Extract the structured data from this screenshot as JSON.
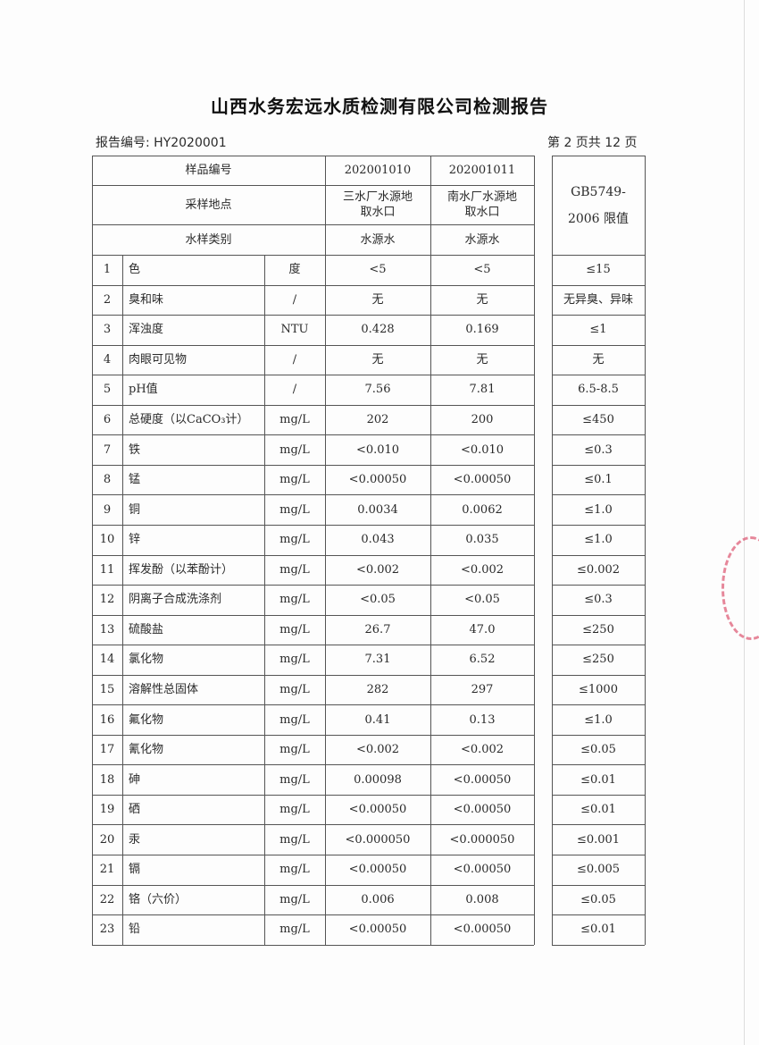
{
  "title": "山西水务宏远水质检测有限公司检测报告",
  "report_no": "报告编号: HY2020001",
  "page_info": "第 2 页共 12 页",
  "header": {
    "sample_no_label": "样品编号",
    "sample_nos": [
      "202001010",
      "202001011"
    ],
    "site_label": "采样地点",
    "sites": [
      "三水厂水源地取水口",
      "南水厂水源地取水口"
    ],
    "type_label": "水样类别",
    "types": [
      "水源水",
      "水源水"
    ],
    "standard": "GB5749-2006 限值"
  },
  "rows": [
    {
      "no": "1",
      "item": "色",
      "unit": "度",
      "a": "<5",
      "b": "<5",
      "limit": "≤15"
    },
    {
      "no": "2",
      "item": "臭和味",
      "unit": "/",
      "a": "无",
      "b": "无",
      "limit": "无异臭、异味"
    },
    {
      "no": "3",
      "item": "浑浊度",
      "unit": "NTU",
      "a": "0.428",
      "b": "0.169",
      "limit": "≤1"
    },
    {
      "no": "4",
      "item": "肉眼可见物",
      "unit": "/",
      "a": "无",
      "b": "无",
      "limit": "无"
    },
    {
      "no": "5",
      "item": "pH值",
      "unit": "/",
      "a": "7.56",
      "b": "7.81",
      "limit": "6.5-8.5"
    },
    {
      "no": "6",
      "item": "总硬度（以CaCO₃计）",
      "unit": "mg/L",
      "a": "202",
      "b": "200",
      "limit": "≤450"
    },
    {
      "no": "7",
      "item": "铁",
      "unit": "mg/L",
      "a": "<0.010",
      "b": "<0.010",
      "limit": "≤0.3"
    },
    {
      "no": "8",
      "item": "锰",
      "unit": "mg/L",
      "a": "<0.00050",
      "b": "<0.00050",
      "limit": "≤0.1"
    },
    {
      "no": "9",
      "item": "铜",
      "unit": "mg/L",
      "a": "0.0034",
      "b": "0.0062",
      "limit": "≤1.0"
    },
    {
      "no": "10",
      "item": "锌",
      "unit": "mg/L",
      "a": "0.043",
      "b": "0.035",
      "limit": "≤1.0"
    },
    {
      "no": "11",
      "item": "挥发酚（以苯酚计）",
      "unit": "mg/L",
      "a": "<0.002",
      "b": "<0.002",
      "limit": "≤0.002"
    },
    {
      "no": "12",
      "item": "阴离子合成洗涤剂",
      "unit": "mg/L",
      "a": "<0.05",
      "b": "<0.05",
      "limit": "≤0.3"
    },
    {
      "no": "13",
      "item": "硫酸盐",
      "unit": "mg/L",
      "a": "26.7",
      "b": "47.0",
      "limit": "≤250"
    },
    {
      "no": "14",
      "item": "氯化物",
      "unit": "mg/L",
      "a": "7.31",
      "b": "6.52",
      "limit": "≤250"
    },
    {
      "no": "15",
      "item": "溶解性总固体",
      "unit": "mg/L",
      "a": "282",
      "b": "297",
      "limit": "≤1000"
    },
    {
      "no": "16",
      "item": "氟化物",
      "unit": "mg/L",
      "a": "0.41",
      "b": "0.13",
      "limit": "≤1.0"
    },
    {
      "no": "17",
      "item": "氰化物",
      "unit": "mg/L",
      "a": "<0.002",
      "b": "<0.002",
      "limit": "≤0.05"
    },
    {
      "no": "18",
      "item": "砷",
      "unit": "mg/L",
      "a": "0.00098",
      "b": "<0.00050",
      "limit": "≤0.01"
    },
    {
      "no": "19",
      "item": "硒",
      "unit": "mg/L",
      "a": "<0.00050",
      "b": "<0.00050",
      "limit": "≤0.01"
    },
    {
      "no": "20",
      "item": "汞",
      "unit": "mg/L",
      "a": "<0.000050",
      "b": "<0.000050",
      "limit": "≤0.001"
    },
    {
      "no": "21",
      "item": "镉",
      "unit": "mg/L",
      "a": "<0.00050",
      "b": "<0.00050",
      "limit": "≤0.005"
    },
    {
      "no": "22",
      "item": "铬（六价）",
      "unit": "mg/L",
      "a": "0.006",
      "b": "0.008",
      "limit": "≤0.05"
    },
    {
      "no": "23",
      "item": "铅",
      "unit": "mg/L",
      "a": "<0.00050",
      "b": "<0.00050",
      "limit": "≤0.01"
    }
  ],
  "seal_color": "#d83a5a"
}
